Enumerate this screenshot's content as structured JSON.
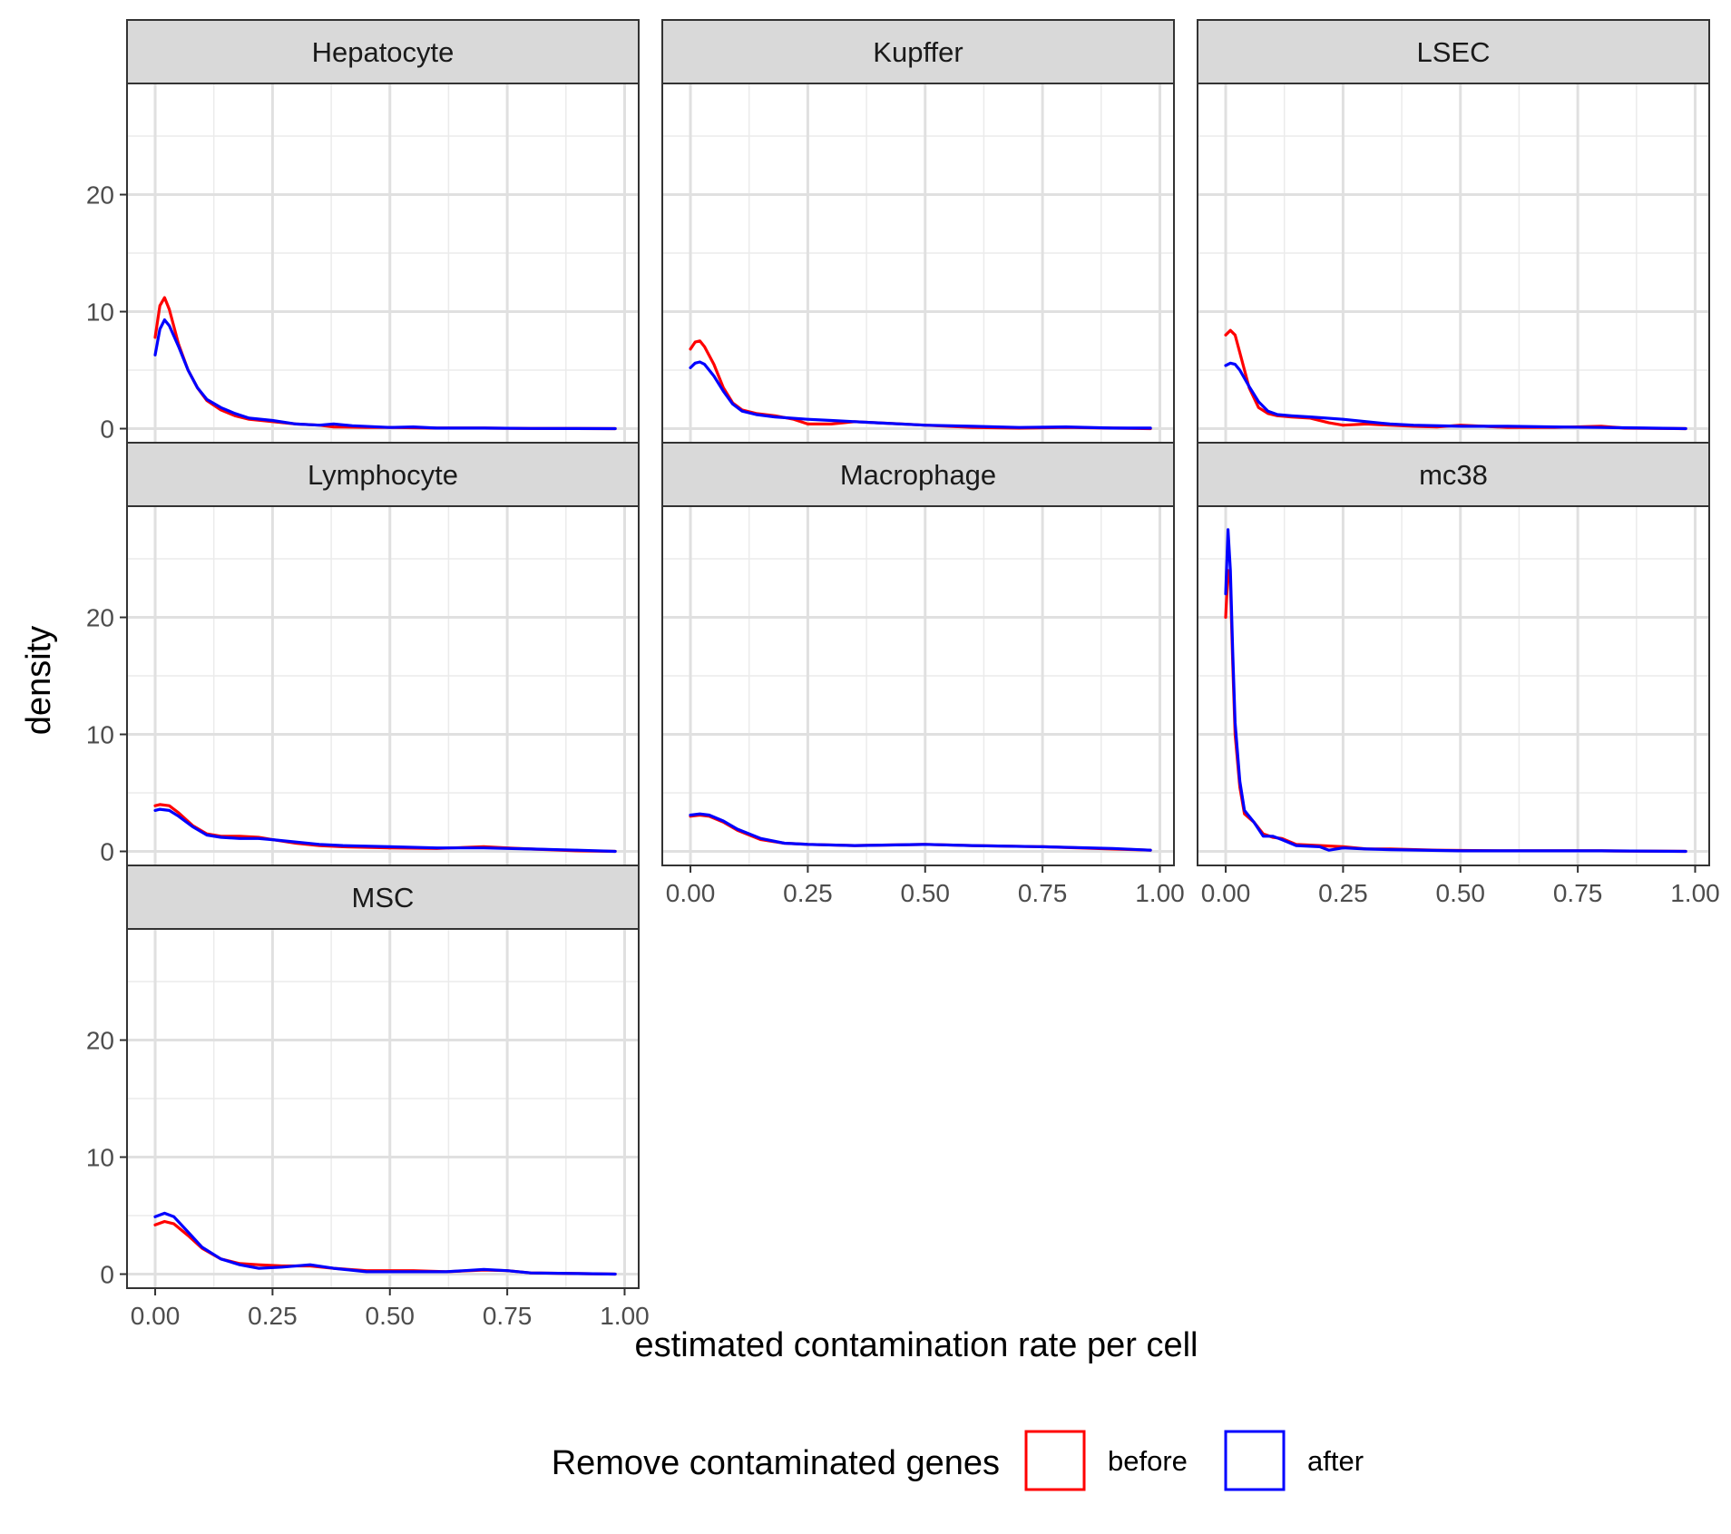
{
  "chart_data": {
    "type": "line",
    "xlabel": "estimated contamination rate per cell",
    "ylabel": "density",
    "xlim": [
      -0.06,
      1.03
    ],
    "ylim": [
      -1.2,
      29.5
    ],
    "x_ticks": [
      0,
      0.25,
      0.5,
      0.75,
      1.0
    ],
    "x_tick_labels": [
      "0.00",
      "0.25",
      "0.50",
      "0.75",
      "1.00"
    ],
    "x_minor_ticks": [
      0.125,
      0.375,
      0.625,
      0.875
    ],
    "y_ticks": [
      0,
      10,
      20
    ],
    "y_tick_labels": [
      "0",
      "10",
      "20"
    ],
    "y_minor_ticks": [
      5,
      15,
      25
    ],
    "grid": true,
    "legend": {
      "title": "Remove contaminated genes",
      "position": "bottom",
      "entries": [
        {
          "label": "before",
          "color": "#ff0000"
        },
        {
          "label": "after",
          "color": "#0000ff"
        }
      ]
    },
    "series_colors": {
      "before": "#ff0000",
      "after": "#0000ff"
    },
    "panels": [
      {
        "title": "Hepatocyte",
        "before": [
          [
            0,
            7.8
          ],
          [
            0.01,
            10.5
          ],
          [
            0.02,
            11.2
          ],
          [
            0.03,
            10.2
          ],
          [
            0.05,
            7.2
          ],
          [
            0.07,
            5.0
          ],
          [
            0.09,
            3.5
          ],
          [
            0.11,
            2.4
          ],
          [
            0.14,
            1.6
          ],
          [
            0.17,
            1.1
          ],
          [
            0.2,
            0.8
          ],
          [
            0.25,
            0.6
          ],
          [
            0.3,
            0.4
          ],
          [
            0.35,
            0.3
          ],
          [
            0.38,
            0.15
          ],
          [
            0.45,
            0.1
          ],
          [
            0.5,
            0.1
          ],
          [
            0.6,
            0.05
          ],
          [
            0.7,
            0.05
          ],
          [
            0.8,
            0.02
          ],
          [
            0.98,
            0.0
          ]
        ],
        "after": [
          [
            0,
            6.3
          ],
          [
            0.01,
            8.5
          ],
          [
            0.02,
            9.3
          ],
          [
            0.03,
            8.8
          ],
          [
            0.05,
            7.0
          ],
          [
            0.07,
            5.0
          ],
          [
            0.09,
            3.5
          ],
          [
            0.11,
            2.5
          ],
          [
            0.14,
            1.8
          ],
          [
            0.17,
            1.3
          ],
          [
            0.2,
            0.9
          ],
          [
            0.25,
            0.7
          ],
          [
            0.3,
            0.4
          ],
          [
            0.35,
            0.3
          ],
          [
            0.38,
            0.4
          ],
          [
            0.42,
            0.25
          ],
          [
            0.5,
            0.1
          ],
          [
            0.55,
            0.15
          ],
          [
            0.6,
            0.05
          ],
          [
            0.7,
            0.05
          ],
          [
            0.8,
            0.02
          ],
          [
            0.98,
            0.0
          ]
        ]
      },
      {
        "title": "Kupffer",
        "before": [
          [
            0,
            6.8
          ],
          [
            0.01,
            7.4
          ],
          [
            0.02,
            7.5
          ],
          [
            0.03,
            7.0
          ],
          [
            0.05,
            5.5
          ],
          [
            0.07,
            3.5
          ],
          [
            0.09,
            2.2
          ],
          [
            0.11,
            1.6
          ],
          [
            0.14,
            1.3
          ],
          [
            0.18,
            1.1
          ],
          [
            0.22,
            0.8
          ],
          [
            0.25,
            0.4
          ],
          [
            0.3,
            0.4
          ],
          [
            0.35,
            0.6
          ],
          [
            0.4,
            0.5
          ],
          [
            0.45,
            0.4
          ],
          [
            0.5,
            0.3
          ],
          [
            0.6,
            0.1
          ],
          [
            0.7,
            0.05
          ],
          [
            0.8,
            0.1
          ],
          [
            0.9,
            0.05
          ],
          [
            0.98,
            0.0
          ]
        ],
        "after": [
          [
            0,
            5.2
          ],
          [
            0.01,
            5.6
          ],
          [
            0.02,
            5.7
          ],
          [
            0.03,
            5.5
          ],
          [
            0.05,
            4.5
          ],
          [
            0.07,
            3.2
          ],
          [
            0.09,
            2.1
          ],
          [
            0.11,
            1.5
          ],
          [
            0.14,
            1.2
          ],
          [
            0.18,
            1.0
          ],
          [
            0.25,
            0.8
          ],
          [
            0.3,
            0.7
          ],
          [
            0.35,
            0.6
          ],
          [
            0.4,
            0.5
          ],
          [
            0.5,
            0.3
          ],
          [
            0.6,
            0.2
          ],
          [
            0.7,
            0.1
          ],
          [
            0.8,
            0.15
          ],
          [
            0.9,
            0.05
          ],
          [
            0.98,
            0.05
          ]
        ]
      },
      {
        "title": "LSEC",
        "before": [
          [
            0,
            8.0
          ],
          [
            0.01,
            8.4
          ],
          [
            0.02,
            8.0
          ],
          [
            0.03,
            6.5
          ],
          [
            0.05,
            3.5
          ],
          [
            0.07,
            1.8
          ],
          [
            0.09,
            1.3
          ],
          [
            0.11,
            1.1
          ],
          [
            0.14,
            1.0
          ],
          [
            0.18,
            0.9
          ],
          [
            0.22,
            0.5
          ],
          [
            0.25,
            0.3
          ],
          [
            0.3,
            0.4
          ],
          [
            0.35,
            0.3
          ],
          [
            0.4,
            0.2
          ],
          [
            0.45,
            0.15
          ],
          [
            0.5,
            0.3
          ],
          [
            0.55,
            0.2
          ],
          [
            0.6,
            0.1
          ],
          [
            0.7,
            0.1
          ],
          [
            0.8,
            0.2
          ],
          [
            0.85,
            0.05
          ],
          [
            0.98,
            0.0
          ]
        ],
        "after": [
          [
            0,
            5.4
          ],
          [
            0.01,
            5.6
          ],
          [
            0.02,
            5.5
          ],
          [
            0.03,
            5.0
          ],
          [
            0.05,
            3.6
          ],
          [
            0.07,
            2.3
          ],
          [
            0.09,
            1.5
          ],
          [
            0.11,
            1.2
          ],
          [
            0.14,
            1.1
          ],
          [
            0.18,
            1.0
          ],
          [
            0.25,
            0.8
          ],
          [
            0.3,
            0.6
          ],
          [
            0.35,
            0.4
          ],
          [
            0.4,
            0.3
          ],
          [
            0.5,
            0.2
          ],
          [
            0.6,
            0.2
          ],
          [
            0.7,
            0.15
          ],
          [
            0.8,
            0.1
          ],
          [
            0.9,
            0.05
          ],
          [
            0.98,
            0.0
          ]
        ]
      },
      {
        "title": "Lymphocyte",
        "before": [
          [
            0,
            3.9
          ],
          [
            0.01,
            4.0
          ],
          [
            0.03,
            3.9
          ],
          [
            0.05,
            3.3
          ],
          [
            0.08,
            2.2
          ],
          [
            0.11,
            1.5
          ],
          [
            0.14,
            1.3
          ],
          [
            0.18,
            1.3
          ],
          [
            0.22,
            1.2
          ],
          [
            0.25,
            1.0
          ],
          [
            0.3,
            0.7
          ],
          [
            0.35,
            0.5
          ],
          [
            0.4,
            0.4
          ],
          [
            0.5,
            0.3
          ],
          [
            0.6,
            0.25
          ],
          [
            0.7,
            0.4
          ],
          [
            0.75,
            0.3
          ],
          [
            0.8,
            0.2
          ],
          [
            0.9,
            0.05
          ],
          [
            0.98,
            0.0
          ]
        ],
        "after": [
          [
            0,
            3.5
          ],
          [
            0.01,
            3.6
          ],
          [
            0.03,
            3.5
          ],
          [
            0.05,
            3.0
          ],
          [
            0.08,
            2.1
          ],
          [
            0.11,
            1.4
          ],
          [
            0.14,
            1.2
          ],
          [
            0.18,
            1.1
          ],
          [
            0.22,
            1.1
          ],
          [
            0.25,
            1.0
          ],
          [
            0.3,
            0.8
          ],
          [
            0.35,
            0.6
          ],
          [
            0.4,
            0.5
          ],
          [
            0.5,
            0.4
          ],
          [
            0.6,
            0.3
          ],
          [
            0.7,
            0.3
          ],
          [
            0.8,
            0.2
          ],
          [
            0.9,
            0.1
          ],
          [
            0.98,
            0.0
          ]
        ]
      },
      {
        "title": "Macrophage",
        "before": [
          [
            0,
            3.0
          ],
          [
            0.02,
            3.1
          ],
          [
            0.04,
            3.0
          ],
          [
            0.07,
            2.5
          ],
          [
            0.1,
            1.8
          ],
          [
            0.15,
            1.0
          ],
          [
            0.2,
            0.7
          ],
          [
            0.25,
            0.6
          ],
          [
            0.35,
            0.5
          ],
          [
            0.5,
            0.6
          ],
          [
            0.6,
            0.5
          ],
          [
            0.75,
            0.4
          ],
          [
            0.9,
            0.2
          ],
          [
            0.98,
            0.1
          ]
        ],
        "after": [
          [
            0,
            3.1
          ],
          [
            0.02,
            3.2
          ],
          [
            0.04,
            3.1
          ],
          [
            0.07,
            2.6
          ],
          [
            0.1,
            1.9
          ],
          [
            0.15,
            1.1
          ],
          [
            0.2,
            0.7
          ],
          [
            0.25,
            0.6
          ],
          [
            0.35,
            0.5
          ],
          [
            0.5,
            0.6
          ],
          [
            0.6,
            0.5
          ],
          [
            0.75,
            0.4
          ],
          [
            0.9,
            0.25
          ],
          [
            0.98,
            0.1
          ]
        ]
      },
      {
        "title": "mc38",
        "before": [
          [
            0,
            20.0
          ],
          [
            0.005,
            24.0
          ],
          [
            0.01,
            23.0
          ],
          [
            0.015,
            16.0
          ],
          [
            0.02,
            10.0
          ],
          [
            0.03,
            5.5
          ],
          [
            0.04,
            3.2
          ],
          [
            0.06,
            2.5
          ],
          [
            0.08,
            1.5
          ],
          [
            0.1,
            1.2
          ],
          [
            0.12,
            1.1
          ],
          [
            0.15,
            0.6
          ],
          [
            0.2,
            0.5
          ],
          [
            0.25,
            0.4
          ],
          [
            0.3,
            0.2
          ],
          [
            0.35,
            0.2
          ],
          [
            0.45,
            0.1
          ],
          [
            0.6,
            0.05
          ],
          [
            0.8,
            0.05
          ],
          [
            0.98,
            0.0
          ]
        ],
        "after": [
          [
            0,
            22.0
          ],
          [
            0.005,
            27.5
          ],
          [
            0.01,
            24.0
          ],
          [
            0.015,
            17.0
          ],
          [
            0.02,
            11.0
          ],
          [
            0.03,
            6.0
          ],
          [
            0.04,
            3.5
          ],
          [
            0.06,
            2.5
          ],
          [
            0.08,
            1.3
          ],
          [
            0.1,
            1.3
          ],
          [
            0.12,
            1.0
          ],
          [
            0.15,
            0.5
          ],
          [
            0.2,
            0.4
          ],
          [
            0.22,
            0.1
          ],
          [
            0.25,
            0.3
          ],
          [
            0.3,
            0.2
          ],
          [
            0.35,
            0.15
          ],
          [
            0.5,
            0.05
          ],
          [
            0.7,
            0.05
          ],
          [
            0.8,
            0.05
          ],
          [
            0.98,
            0.0
          ]
        ]
      },
      {
        "title": "MSC",
        "before": [
          [
            0,
            4.2
          ],
          [
            0.02,
            4.5
          ],
          [
            0.04,
            4.3
          ],
          [
            0.07,
            3.3
          ],
          [
            0.1,
            2.2
          ],
          [
            0.14,
            1.3
          ],
          [
            0.18,
            0.9
          ],
          [
            0.22,
            0.8
          ],
          [
            0.27,
            0.7
          ],
          [
            0.33,
            0.7
          ],
          [
            0.38,
            0.5
          ],
          [
            0.45,
            0.3
          ],
          [
            0.55,
            0.3
          ],
          [
            0.62,
            0.2
          ],
          [
            0.7,
            0.35
          ],
          [
            0.75,
            0.3
          ],
          [
            0.8,
            0.1
          ],
          [
            0.9,
            0.05
          ],
          [
            0.98,
            0.0
          ]
        ],
        "after": [
          [
            0,
            4.9
          ],
          [
            0.02,
            5.2
          ],
          [
            0.04,
            4.9
          ],
          [
            0.07,
            3.6
          ],
          [
            0.1,
            2.3
          ],
          [
            0.14,
            1.3
          ],
          [
            0.18,
            0.8
          ],
          [
            0.22,
            0.5
          ],
          [
            0.27,
            0.6
          ],
          [
            0.33,
            0.8
          ],
          [
            0.38,
            0.5
          ],
          [
            0.45,
            0.2
          ],
          [
            0.55,
            0.2
          ],
          [
            0.62,
            0.2
          ],
          [
            0.7,
            0.4
          ],
          [
            0.75,
            0.3
          ],
          [
            0.8,
            0.1
          ],
          [
            0.9,
            0.05
          ],
          [
            0.98,
            0.0
          ]
        ]
      }
    ]
  }
}
